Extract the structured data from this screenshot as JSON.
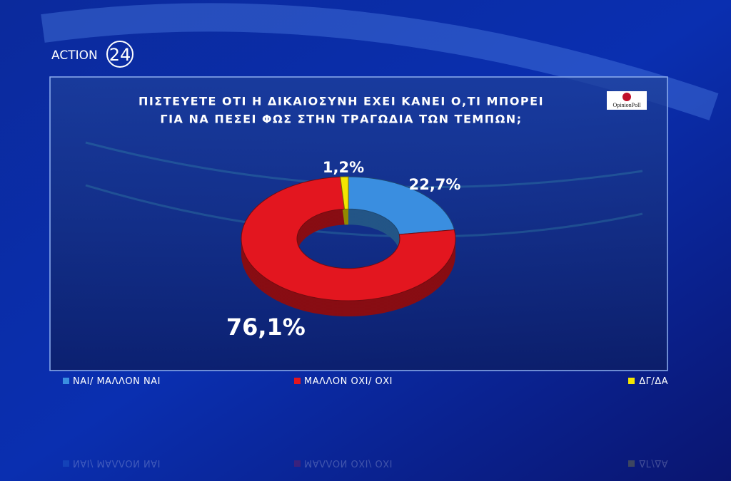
{
  "chart_data": {
    "type": "pie",
    "title": [
      "ΠΙΣΤΕΥΕΤΕ ΟΤΙ Η ΔΙΚΑΙΟΣΥΝΗ ΕΧΕΙ ΚΑΝΕΙ Ο,ΤΙ ΜΠΟΡΕΙ",
      "ΓΙΑ ΝΑ ΠΕΣΕΙ ΦΩΣ ΣΤΗΝ ΤΡΑΓΩΔΙΑ ΤΩΝ ΤΕΜΠΩΝ;"
    ],
    "categories": [
      "ΝΑΙ/ ΜΑΛΛΟΝ ΝΑΙ",
      "ΜΑΛΛΟΝ ΟΧΙ/ ΟΧΙ",
      "ΔΓ/ΔΑ"
    ],
    "values": [
      22.7,
      76.1,
      1.2
    ],
    "value_labels": [
      "22,7%",
      "76,1%",
      "1,2%"
    ],
    "colors": [
      "#3a8ee0",
      "#e3161f",
      "#f4e500"
    ],
    "donut": true
  },
  "branding": {
    "channel": "ACTION",
    "channel_number": "24",
    "pollster": "OpinionPoll"
  }
}
